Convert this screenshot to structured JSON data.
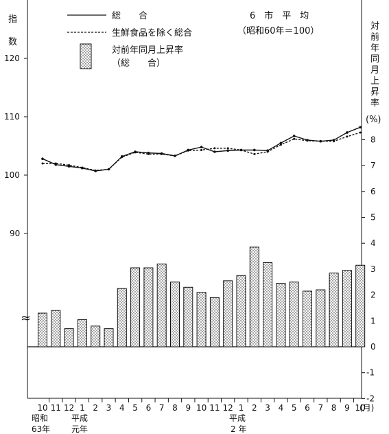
{
  "chart_data": {
    "type": "bar+line",
    "title": "6　市　平　均",
    "subtitle": "（昭和60年＝100）",
    "left_axis": {
      "label_chars": [
        "指",
        "数"
      ],
      "ticks": [
        90,
        100,
        110,
        120
      ]
    },
    "right_axis": {
      "label": "対前年同月上昇率(%)",
      "label_chars": [
        "対",
        "前",
        "年",
        "同",
        "月",
        "上",
        "昇",
        "率"
      ],
      "label_unit": "(%)",
      "ticks": [
        8,
        7,
        6,
        5,
        4,
        3,
        2,
        1,
        0,
        -1,
        -2
      ],
      "ylim": [
        -2,
        8
      ]
    },
    "legend": [
      {
        "label": "総　　合",
        "style": "solid"
      },
      {
        "label": "生鮮食品を除く総合",
        "style": "dashed"
      },
      {
        "label": "対前年同月上昇率",
        "label2": "（総　　合）",
        "style": "bar"
      }
    ],
    "categories": [
      "10",
      "11",
      "12",
      "1",
      "2",
      "3",
      "4",
      "5",
      "6",
      "7",
      "8",
      "9",
      "10",
      "11",
      "12",
      "1",
      "2",
      "3",
      "4",
      "5",
      "6",
      "7",
      "8",
      "9",
      "10"
    ],
    "x_unit": "(月)",
    "era_labels": [
      {
        "line1": "昭和",
        "line2": "63年"
      },
      {
        "line1": "平成",
        "line2": "元年"
      },
      {
        "line1": "平成",
        "line2": "2 年"
      }
    ],
    "break_symbol": "≈",
    "series": [
      {
        "values": [
          102.8,
          101.8,
          101.5,
          101.2,
          100.7,
          101.0,
          103.2,
          104.0,
          103.8,
          103.7,
          103.3,
          104.3,
          104.8,
          104.0,
          104.2,
          104.3,
          104.3,
          104.2,
          105.5,
          106.7,
          106.0,
          105.8,
          106.0,
          107.3,
          108.2
        ]
      },
      {
        "values": [
          102.0,
          102.0,
          101.7,
          101.3,
          100.8,
          101.0,
          103.1,
          103.9,
          103.6,
          103.6,
          103.3,
          104.2,
          104.3,
          104.6,
          104.6,
          104.3,
          103.6,
          104.0,
          105.2,
          106.2,
          105.9,
          105.8,
          105.8,
          106.6,
          107.3
        ]
      },
      {
        "values": [
          1.3,
          1.4,
          0.7,
          1.05,
          0.8,
          0.7,
          2.25,
          3.05,
          3.05,
          3.2,
          2.5,
          2.3,
          2.1,
          1.9,
          2.55,
          2.75,
          3.85,
          3.25,
          2.45,
          2.5,
          2.15,
          2.2,
          2.85,
          2.95,
          3.15
        ]
      }
    ]
  }
}
